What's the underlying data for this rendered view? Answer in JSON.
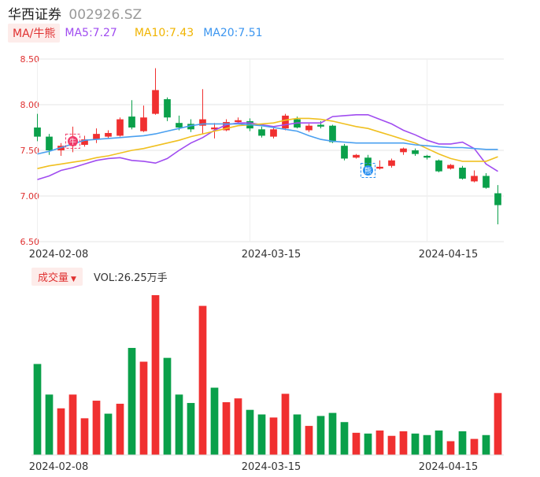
{
  "header": {
    "name": "华西证券",
    "code": "002926.SZ"
  },
  "ma": {
    "tag": "MA/牛熊",
    "ma5": "MA5:7.27",
    "ma10": "MA10:7.43",
    "ma20": "MA20:7.51"
  },
  "volume_bar": {
    "tag": "成交量",
    "vol": "VOL:26.25万手"
  },
  "colors": {
    "up": "#f03030",
    "down": "#0aa04a",
    "ma5": "#a04cf0",
    "ma10": "#f0c020",
    "ma20": "#4aa0f0",
    "grid": "#e5e5e5",
    "tick": "#e03030"
  },
  "chart_data": [
    {
      "type": "candlestick",
      "ylim": [
        6.5,
        8.5
      ],
      "yticks": [
        "8.50",
        "8.00",
        "7.50",
        "7.00",
        "6.50"
      ],
      "xticks": [
        {
          "index": 0,
          "label": "2024-02-08"
        },
        {
          "index": 18,
          "label": "2024-03-15"
        },
        {
          "index": 33,
          "label": "2024-04-15"
        }
      ],
      "markers": [
        {
          "index": 3,
          "label": "牛"
        },
        {
          "index": 28,
          "label": "熊"
        }
      ],
      "candles": [
        {
          "o": 7.75,
          "c": 7.65,
          "h": 7.9,
          "l": 7.6
        },
        {
          "o": 7.65,
          "c": 7.5,
          "h": 7.68,
          "l": 7.45
        },
        {
          "o": 7.5,
          "c": 7.55,
          "h": 7.58,
          "l": 7.44
        },
        {
          "o": 7.55,
          "c": 7.6,
          "h": 7.76,
          "l": 7.48
        },
        {
          "o": 7.56,
          "c": 7.62,
          "h": 7.66,
          "l": 7.54
        },
        {
          "o": 7.62,
          "c": 7.68,
          "h": 7.74,
          "l": 7.58
        },
        {
          "o": 7.65,
          "c": 7.69,
          "h": 7.72,
          "l": 7.63
        },
        {
          "o": 7.66,
          "c": 7.84,
          "h": 7.86,
          "l": 7.65
        },
        {
          "o": 7.87,
          "c": 7.75,
          "h": 8.05,
          "l": 7.73
        },
        {
          "o": 7.71,
          "c": 7.86,
          "h": 7.99,
          "l": 7.7
        },
        {
          "o": 7.9,
          "c": 8.16,
          "h": 8.4,
          "l": 7.89
        },
        {
          "o": 8.06,
          "c": 7.86,
          "h": 8.08,
          "l": 7.82
        },
        {
          "o": 7.8,
          "c": 7.75,
          "h": 7.88,
          "l": 7.72
        },
        {
          "o": 7.79,
          "c": 7.73,
          "h": 7.84,
          "l": 7.7
        },
        {
          "o": 7.77,
          "c": 7.84,
          "h": 8.17,
          "l": 7.68
        },
        {
          "o": 7.73,
          "c": 7.75,
          "h": 7.8,
          "l": 7.63
        },
        {
          "o": 7.72,
          "c": 7.81,
          "h": 7.84,
          "l": 7.71
        },
        {
          "o": 7.81,
          "c": 7.83,
          "h": 7.86,
          "l": 7.79
        },
        {
          "o": 7.82,
          "c": 7.74,
          "h": 7.85,
          "l": 7.71
        },
        {
          "o": 7.73,
          "c": 7.66,
          "h": 7.76,
          "l": 7.64
        },
        {
          "o": 7.65,
          "c": 7.73,
          "h": 7.75,
          "l": 7.63
        },
        {
          "o": 7.74,
          "c": 7.88,
          "h": 7.9,
          "l": 7.72
        },
        {
          "o": 7.84,
          "c": 7.75,
          "h": 7.87,
          "l": 7.74
        },
        {
          "o": 7.72,
          "c": 7.77,
          "h": 7.79,
          "l": 7.7
        },
        {
          "o": 7.78,
          "c": 7.76,
          "h": 7.82,
          "l": 7.74
        },
        {
          "o": 7.77,
          "c": 7.59,
          "h": 7.78,
          "l": 7.58
        },
        {
          "o": 7.55,
          "c": 7.41,
          "h": 7.57,
          "l": 7.39
        },
        {
          "o": 7.42,
          "c": 7.45,
          "h": 7.46,
          "l": 7.41
        },
        {
          "o": 7.42,
          "c": 7.28,
          "h": 7.45,
          "l": 7.27
        },
        {
          "o": 7.3,
          "c": 7.32,
          "h": 7.39,
          "l": 7.29
        },
        {
          "o": 7.33,
          "c": 7.39,
          "h": 7.41,
          "l": 7.31
        },
        {
          "o": 7.48,
          "c": 7.52,
          "h": 7.53,
          "l": 7.45
        },
        {
          "o": 7.5,
          "c": 7.46,
          "h": 7.52,
          "l": 7.44
        },
        {
          "o": 7.44,
          "c": 7.42,
          "h": 7.45,
          "l": 7.4
        },
        {
          "o": 7.39,
          "c": 7.27,
          "h": 7.4,
          "l": 7.26
        },
        {
          "o": 7.3,
          "c": 7.34,
          "h": 7.35,
          "l": 7.29
        },
        {
          "o": 7.31,
          "c": 7.19,
          "h": 7.33,
          "l": 7.18
        },
        {
          "o": 7.16,
          "c": 7.22,
          "h": 7.28,
          "l": 7.15
        },
        {
          "o": 7.22,
          "c": 7.09,
          "h": 7.25,
          "l": 7.08
        },
        {
          "o": 7.03,
          "c": 6.9,
          "h": 7.12,
          "l": 6.69
        }
      ],
      "ma_lines": {
        "MA5": [
          7.18,
          7.22,
          7.28,
          7.31,
          7.35,
          7.39,
          7.41,
          7.42,
          7.39,
          7.38,
          7.36,
          7.41,
          7.5,
          7.58,
          7.64,
          7.72,
          7.78,
          7.8,
          7.8,
          7.78,
          7.76,
          7.78,
          7.8,
          7.8,
          7.8,
          7.87,
          7.88,
          7.89,
          7.89,
          7.84,
          7.79,
          7.72,
          7.67,
          7.61,
          7.57,
          7.57,
          7.59,
          7.52,
          7.35,
          7.27
        ],
        "MA10": [
          7.3,
          7.33,
          7.35,
          7.37,
          7.39,
          7.42,
          7.44,
          7.47,
          7.5,
          7.52,
          7.55,
          7.58,
          7.61,
          7.65,
          7.68,
          7.71,
          7.74,
          7.77,
          7.78,
          7.79,
          7.8,
          7.83,
          7.85,
          7.85,
          7.84,
          7.82,
          7.79,
          7.76,
          7.74,
          7.7,
          7.66,
          7.62,
          7.58,
          7.52,
          7.46,
          7.41,
          7.38,
          7.38,
          7.38,
          7.43
        ],
        "MA20": [
          7.46,
          7.49,
          7.53,
          7.57,
          7.61,
          7.62,
          7.63,
          7.64,
          7.65,
          7.66,
          7.68,
          7.71,
          7.74,
          7.77,
          7.79,
          7.79,
          7.79,
          7.79,
          7.78,
          7.77,
          7.75,
          7.73,
          7.71,
          7.66,
          7.62,
          7.6,
          7.59,
          7.58,
          7.58,
          7.58,
          7.58,
          7.58,
          7.56,
          7.55,
          7.54,
          7.53,
          7.53,
          7.52,
          7.51,
          7.51
        ]
      }
    },
    {
      "type": "bar",
      "title": "成交量",
      "xticks": [
        {
          "index": 0,
          "label": "2024-02-08"
        },
        {
          "index": 18,
          "label": "2024-03-15"
        },
        {
          "index": 33,
          "label": "2024-04-15"
        }
      ],
      "values": [
        59.5,
        39.5,
        30.5,
        39.5,
        24.0,
        35.5,
        27.0,
        33.5,
        70.0,
        61.0,
        104.5,
        63.5,
        39.5,
        34.0,
        97.5,
        44.0,
        34.5,
        37.0,
        29.5,
        26.5,
        24.5,
        40.0,
        26.5,
        19.0,
        25.5,
        27.5,
        21.5,
        14.5,
        14.0,
        16.0,
        12.5,
        15.5,
        14.0,
        13.0,
        16.0,
        9.0,
        15.5,
        10.5,
        13.0,
        40.5
      ],
      "colors_up": [
        false,
        false,
        true,
        true,
        true,
        true,
        false,
        true,
        false,
        true,
        true,
        false,
        false,
        false,
        true,
        false,
        true,
        true,
        false,
        false,
        true,
        true,
        false,
        true,
        false,
        false,
        false,
        true,
        false,
        true,
        true,
        true,
        false,
        false,
        false,
        true,
        false,
        true,
        false,
        true
      ]
    }
  ]
}
